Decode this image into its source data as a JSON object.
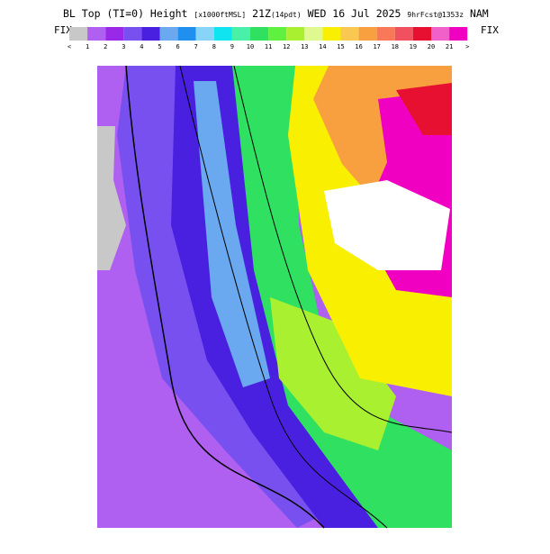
{
  "header": {
    "title": "BL Top (TI=0) Height",
    "units": "[x1000ftMSL]",
    "time": "21Z",
    "local": "(14pdt)",
    "date": "WED 16 Jul 2025",
    "forecast": "9hrFcst@1353z",
    "model": "NAM"
  },
  "colorbar": {
    "left_label": "FIX",
    "right_label": "FIX",
    "colors": [
      "#c8c8c8",
      "#b060f0",
      "#9a28e8",
      "#7850f0",
      "#4a20e0",
      "#6aa8f0",
      "#2090f0",
      "#88d4f8",
      "#10e4f0",
      "#48f0a8",
      "#30e060",
      "#60f040",
      "#a8f030",
      "#e0f890",
      "#f8f000",
      "#f8c850",
      "#f8a040",
      "#f87858",
      "#f05060",
      "#e81030",
      "#f060c8",
      "#f000c0"
    ],
    "labels": [
      "<",
      "1",
      "2",
      "3",
      "4",
      "5",
      "6",
      "7",
      "8",
      "9",
      "10",
      "11",
      "12",
      "13",
      "14",
      "15",
      "16",
      "17",
      "18",
      "19",
      "20",
      "21",
      ">"
    ]
  }
}
